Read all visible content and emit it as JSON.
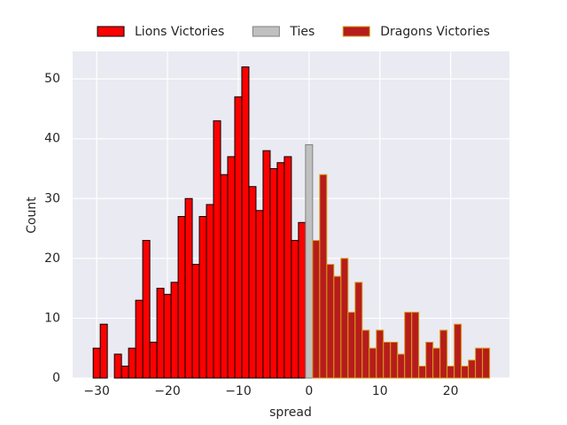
{
  "chart_data": {
    "type": "histogram",
    "xlabel": "spread",
    "ylabel": "Count",
    "xlim": [
      -33.4,
      28.3
    ],
    "ylim": [
      0,
      54.6
    ],
    "xticks": [
      {
        "value": -30,
        "label": "−30"
      },
      {
        "value": -20,
        "label": "−20"
      },
      {
        "value": -10,
        "label": "−10"
      },
      0,
      10,
      20
    ],
    "yticks": [
      0,
      10,
      20,
      30,
      40,
      50
    ],
    "grid": true,
    "legend": "top",
    "series": [
      {
        "name": "Lions Victories",
        "color": "#ff0000",
        "edgecolor": "#000000",
        "bins": [
          -30.5,
          -29.5,
          -28.5,
          -27.5,
          -26.5,
          -25.5,
          -24.5,
          -23.5,
          -22.5,
          -21.5,
          -20.5,
          -19.5,
          -18.5,
          -17.5,
          -16.5,
          -15.5,
          -14.5,
          -13.5,
          -12.5,
          -11.5,
          -10.5,
          -9.5,
          -8.5,
          -7.5,
          -6.5,
          -5.5,
          -4.5,
          -3.5,
          -2.5,
          -1.5,
          -0.5
        ],
        "values": [
          5,
          9,
          0,
          4,
          2,
          5,
          13,
          23,
          6,
          15,
          14,
          16,
          27,
          30,
          19,
          27,
          29,
          43,
          34,
          37,
          47,
          52,
          32,
          28,
          38,
          35,
          36,
          37,
          23,
          26
        ]
      },
      {
        "name": "Ties",
        "color": "#c0c0c0",
        "edgecolor": "#808080",
        "bins": [
          -0.5,
          0.5
        ],
        "values": [
          39
        ]
      },
      {
        "name": "Dragons Victories",
        "color": "#b71c1c",
        "edgecolor": "#d4a017",
        "bins": [
          0.5,
          1.5,
          2.5,
          3.5,
          4.5,
          5.5,
          6.5,
          7.5,
          8.5,
          9.5,
          10.5,
          11.5,
          12.5,
          13.5,
          14.5,
          15.5,
          16.5,
          17.5,
          18.5,
          19.5,
          20.5,
          21.5,
          22.5,
          23.5,
          24.5,
          25.5
        ],
        "values": [
          23,
          34,
          19,
          17,
          20,
          11,
          16,
          8,
          5,
          8,
          6,
          6,
          4,
          11,
          11,
          2,
          6,
          5,
          8,
          2,
          9,
          2,
          3,
          5,
          5
        ]
      }
    ]
  }
}
